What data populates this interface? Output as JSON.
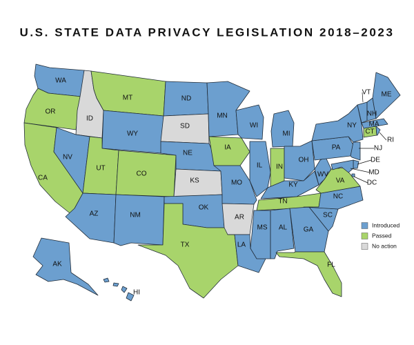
{
  "map": {
    "title": "U.S. STATE DATA PRIVACY LEGISLATION 2018–2023",
    "legend": [
      {
        "label": "Introduced",
        "color": "#6c9fcf"
      },
      {
        "label": "Passed",
        "color": "#a8d46b"
      },
      {
        "label": "No action",
        "color": "#d9d9d9"
      }
    ],
    "states": [
      {
        "label": "WA",
        "status": "Introduced"
      },
      {
        "label": "OR",
        "status": "Passed"
      },
      {
        "label": "CA",
        "status": "Passed"
      },
      {
        "label": "ID",
        "status": "No action"
      },
      {
        "label": "NV",
        "status": "Introduced"
      },
      {
        "label": "MT",
        "status": "Passed"
      },
      {
        "label": "WY",
        "status": "Introduced"
      },
      {
        "label": "UT",
        "status": "Passed"
      },
      {
        "label": "CO",
        "status": "Passed"
      },
      {
        "label": "AZ",
        "status": "Introduced"
      },
      {
        "label": "NM",
        "status": "Introduced"
      },
      {
        "label": "ND",
        "status": "Introduced"
      },
      {
        "label": "SD",
        "status": "No action"
      },
      {
        "label": "NE",
        "status": "Introduced"
      },
      {
        "label": "KS",
        "status": "No action"
      },
      {
        "label": "OK",
        "status": "Introduced"
      },
      {
        "label": "TX",
        "status": "Passed"
      },
      {
        "label": "MN",
        "status": "Introduced"
      },
      {
        "label": "IA",
        "status": "Passed"
      },
      {
        "label": "MO",
        "status": "Introduced"
      },
      {
        "label": "AR",
        "status": "No action"
      },
      {
        "label": "LA",
        "status": "Introduced"
      },
      {
        "label": "WI",
        "status": "Introduced"
      },
      {
        "label": "IL",
        "status": "Introduced"
      },
      {
        "label": "MI",
        "status": "Introduced"
      },
      {
        "label": "IN",
        "status": "Passed"
      },
      {
        "label": "OH",
        "status": "Introduced"
      },
      {
        "label": "KY",
        "status": "Introduced"
      },
      {
        "label": "TN",
        "status": "Passed"
      },
      {
        "label": "MS",
        "status": "Introduced"
      },
      {
        "label": "AL",
        "status": "Introduced"
      },
      {
        "label": "GA",
        "status": "Introduced"
      },
      {
        "label": "FL",
        "status": "Passed"
      },
      {
        "label": "SC",
        "status": "Introduced"
      },
      {
        "label": "NC",
        "status": "Introduced"
      },
      {
        "label": "VA",
        "status": "Passed"
      },
      {
        "label": "WV",
        "status": "Introduced"
      },
      {
        "label": "PA",
        "status": "Introduced"
      },
      {
        "label": "NY",
        "status": "Introduced"
      },
      {
        "label": "NJ",
        "status": "Introduced"
      },
      {
        "label": "DE",
        "status": "Introduced"
      },
      {
        "label": "MD",
        "status": "Introduced"
      },
      {
        "label": "DC",
        "status": "Introduced"
      },
      {
        "label": "CT",
        "status": "Passed"
      },
      {
        "label": "RI",
        "status": "Introduced"
      },
      {
        "label": "MA",
        "status": "Introduced"
      },
      {
        "label": "VT",
        "status": "Introduced"
      },
      {
        "label": "NH",
        "status": "Introduced"
      },
      {
        "label": "ME",
        "status": "Introduced"
      },
      {
        "label": "AK",
        "status": "Introduced"
      },
      {
        "label": "HI",
        "status": "Introduced"
      }
    ]
  }
}
